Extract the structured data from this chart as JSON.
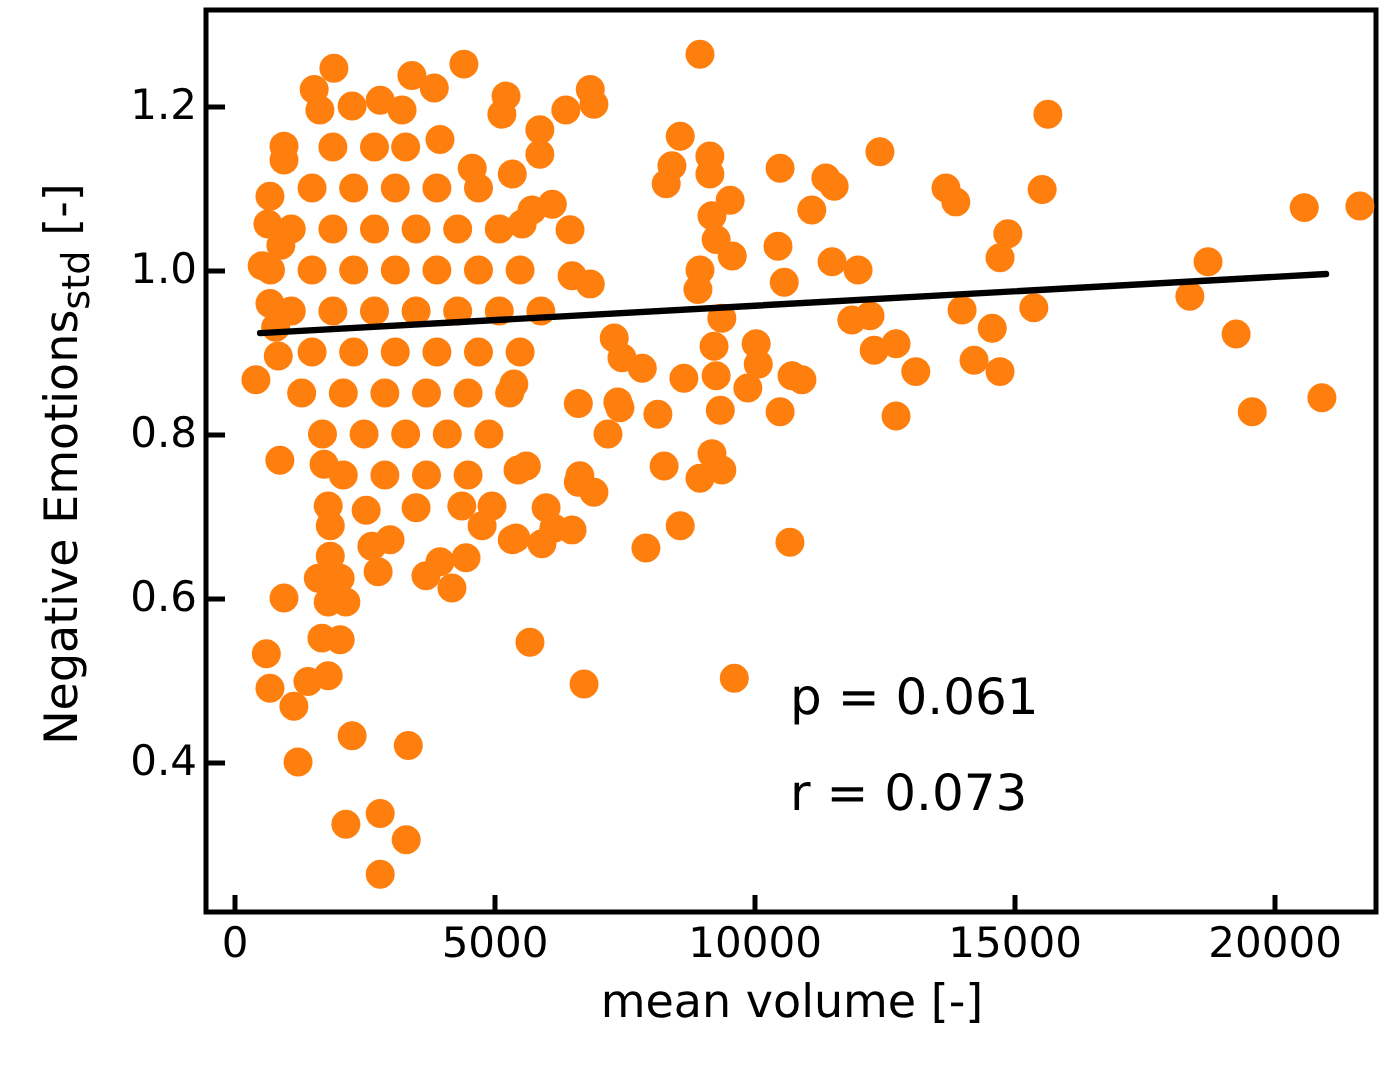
{
  "chart_data": {
    "type": "scatter",
    "xlabel": "mean volume [-]",
    "ylabel": "Negative Emotions$_{std}$ [-]",
    "xlim": [
      -540,
      21960
    ],
    "ylim": [
      0.217,
      1.317
    ],
    "xticks": [
      0,
      5000,
      10000,
      15000,
      20000
    ],
    "yticks": [
      0.4,
      0.6,
      0.8,
      {
        "value": 1.0,
        "label": "1.0"
      },
      1.2
    ],
    "grid": false,
    "annotations": [
      "p = 0.061",
      "r = 0.073"
    ],
    "series": [
      {
        "color": "#ff7f0e",
        "marker": "circle",
        "x": [
          21650,
          20920,
          20580,
          19580,
          19270,
          18730,
          18380,
          15650,
          15540,
          15380,
          14880,
          14730,
          14730,
          14580,
          14230,
          14000,
          13880,
          13690,
          13110,
          12730,
          12730,
          12420,
          12310,
          12230,
          12000,
          11880,
          11500,
          11540,
          11380,
          11110,
          10920,
          10730,
          10690,
          10580,
          10500,
          10500,
          10460,
          10080,
          10040,
          9880,
          9580,
          9540,
          9380,
          9380,
          9350,
          9270,
          9270,
          9230,
          9190,
          9190,
          9150,
          9150,
          8960,
          8960,
          8960,
          8920,
          8650,
          8580,
          8580,
          8420,
          8310,
          8270,
          8150,
          7920,
          7460,
          7420,
          7190,
          6920,
          6650,
          6920,
          6850,
          6730,
          5690,
          7850,
          7380,
          7310,
          6620,
          6620,
          6500,
          6000,
          5620,
          5460,
          5380,
          5350,
          5920,
          9620,
          2810,
          3310,
          2810,
          2150,
          1230,
          3350,
          2270,
          1150,
          690,
          1420,
          1810,
          620,
          1690,
          2040,
          960,
          1810,
          2150,
          1620,
          2040,
          1850,
          2770,
          2650,
          3000,
          3690,
          3960,
          4190,
          4460,
          5420,
          6150,
          4770,
          4960,
          3500,
          4380,
          2540,
          1850,
          1810,
          880,
          1730,
          1920,
          1540,
          1650,
          3420,
          3850,
          4420,
          5230,
          5150,
          6380,
          5880,
          3960,
          4580,
          2810,
          2270,
          3230,
          960,
          960,
          690,
          650,
          540,
          690,
          420,
          850,
          5350,
          5880,
          6120,
          5730,
          6460,
          6500,
          6850,
          5540,
          1500,
          2300,
          3100,
          3900,
          4700,
          1100,
          1900,
          2700,
          3500,
          4300,
          5100,
          1500,
          2300,
          3100,
          3900,
          4700,
          5500,
          1100,
          1900,
          2700,
          3500,
          4300,
          5100,
          5900,
          1500,
          2300,
          3100,
          3900,
          4700,
          5500,
          1300,
          2100,
          2900,
          3700,
          4500,
          5300,
          1700,
          2500,
          3300,
          4100,
          4900,
          2100,
          2900,
          3700,
          4500,
          1900,
          2700,
          3300,
          800,
          700,
          900
        ],
        "values": [
          1.078,
          0.844,
          1.076,
          0.827,
          0.922,
          1.01,
          0.968,
          1.19,
          1.098,
          0.954,
          1.044,
          1.015,
          0.876,
          0.929,
          0.89,
          0.951,
          1.083,
          1.1,
          0.876,
          0.822,
          0.91,
          1.144,
          0.902,
          0.944,
          1.0,
          0.939,
          1.01,
          1.102,
          1.112,
          1.073,
          0.866,
          0.871,
          0.668,
          0.985,
          0.827,
          1.124,
          1.029,
          0.885,
          0.91,
          0.856,
          1.017,
          1.085,
          0.941,
          0.756,
          0.829,
          0.871,
          1.037,
          0.907,
          1.066,
          0.776,
          1.117,
          1.139,
          1.0,
          0.746,
          1.263,
          0.976,
          0.868,
          1.163,
          0.688,
          1.127,
          1.105,
          0.761,
          0.824,
          0.661,
          0.893,
          0.832,
          0.8,
          0.729,
          0.749,
          1.202,
          1.22,
          0.495,
          0.546,
          0.88,
          0.839,
          0.917,
          0.837,
          0.741,
          0.683,
          0.71,
          0.761,
          0.756,
          0.861,
          0.671,
          0.666,
          0.502,
          0.263,
          0.305,
          0.337,
          0.324,
          0.4,
          0.42,
          0.432,
          0.468,
          0.49,
          0.498,
          0.505,
          0.532,
          0.551,
          0.549,
          0.6,
          0.595,
          0.595,
          0.624,
          0.624,
          0.651,
          0.632,
          0.663,
          0.671,
          0.627,
          0.644,
          0.612,
          0.649,
          0.673,
          0.685,
          0.688,
          0.712,
          0.71,
          0.712,
          0.707,
          0.688,
          0.712,
          0.768,
          0.763,
          1.246,
          1.22,
          1.195,
          1.237,
          1.222,
          1.251,
          1.212,
          1.19,
          1.195,
          1.171,
          1.159,
          1.124,
          1.207,
          1.2,
          1.195,
          1.151,
          1.134,
          1.09,
          1.056,
          1.005,
          0.959,
          0.866,
          0.895,
          1.117,
          1.141,
          1.08,
          1.073,
          1.049,
          0.993,
          0.983,
          1.056,
          1.1,
          1.1,
          1.1,
          1.1,
          1.1,
          1.05,
          1.05,
          1.05,
          1.05,
          1.05,
          1.05,
          1.0,
          1.0,
          1.0,
          1.0,
          1.0,
          1.0,
          0.95,
          0.95,
          0.95,
          0.95,
          0.95,
          0.95,
          0.95,
          0.9,
          0.9,
          0.9,
          0.9,
          0.9,
          0.9,
          0.85,
          0.85,
          0.85,
          0.85,
          0.85,
          0.85,
          0.8,
          0.8,
          0.8,
          0.8,
          0.8,
          0.75,
          0.75,
          0.75,
          0.75,
          1.15,
          1.15,
          1.15,
          0.93,
          1.0,
          1.03
        ]
      },
      {
        "type": "line",
        "color": "#000000",
        "x": [
          500,
          21000
        ],
        "values": [
          0.923,
          0.995
        ]
      }
    ]
  }
}
